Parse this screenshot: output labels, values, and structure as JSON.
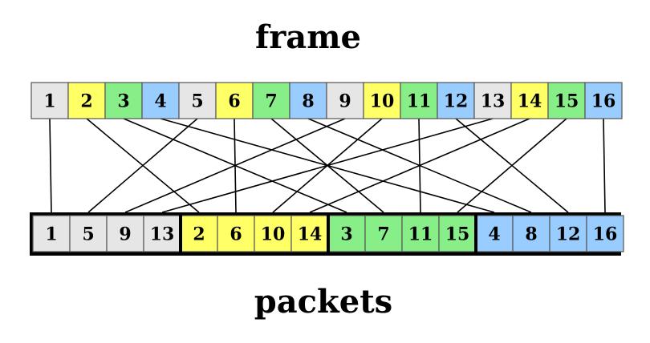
{
  "title_top": "frame",
  "title_bottom": "packets",
  "frame_cells": [
    "1",
    "2",
    "3",
    "4",
    "5",
    "6",
    "7",
    "8",
    "9",
    "10",
    "11",
    "12",
    "13",
    "14",
    "15",
    "16"
  ],
  "packet_groups": [
    {
      "cells": [
        "1",
        "5",
        "9",
        "13"
      ],
      "color": "#e6e6e6"
    },
    {
      "cells": [
        "2",
        "6",
        "10",
        "14"
      ],
      "color": "#ffff66"
    },
    {
      "cells": [
        "3",
        "7",
        "11",
        "15"
      ],
      "color": "#88ee88"
    },
    {
      "cells": [
        "4",
        "8",
        "12",
        "16"
      ],
      "color": "#99ccff"
    }
  ],
  "colors": {
    "gray": "#e6e6e6",
    "yellow": "#ffff66",
    "green": "#88ee88",
    "blue": "#99ccff",
    "border": "#000000"
  }
}
